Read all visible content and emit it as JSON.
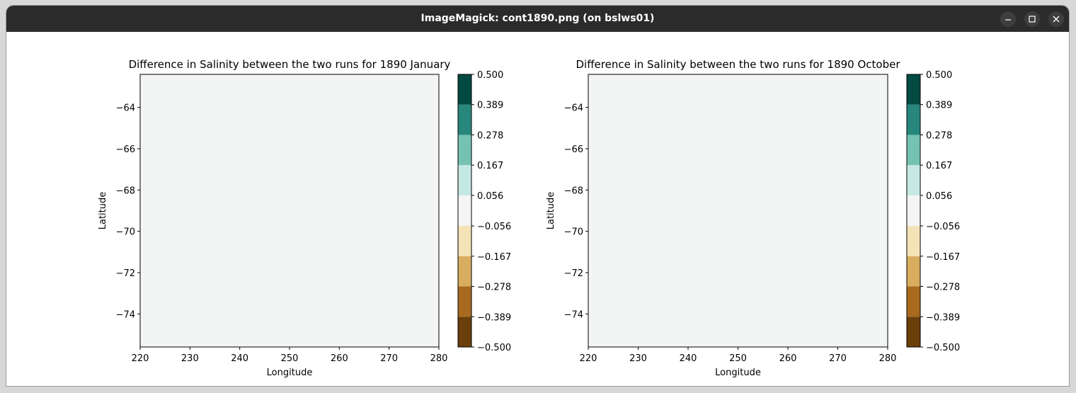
{
  "window": {
    "title": "ImageMagick: cont1890.png (on bslws01)",
    "buttons": [
      "minimize",
      "maximize",
      "close"
    ]
  },
  "colors": {
    "titlebar": "#2b2b2b",
    "field": "#f3f5f4",
    "colorbar": [
      "#6b3f0b",
      "#a86a1f",
      "#d8ad60",
      "#f5e3b8",
      "#f5f5f5",
      "#c6e8e2",
      "#75c2b2",
      "#27877c",
      "#034a42"
    ]
  },
  "chart_data": [
    {
      "type": "heatmap",
      "title": "Difference in Salinity between the two runs for 1890 January",
      "xlabel": "Longitude",
      "ylabel": "Latitude",
      "xlim": [
        220,
        280
      ],
      "ylim": [
        -75.6,
        -62.4
      ],
      "xticks": [
        220,
        230,
        240,
        250,
        260,
        270,
        280
      ],
      "yticks": [
        -64,
        -66,
        -68,
        -70,
        -72,
        -74
      ],
      "ytick_labels": [
        "−64",
        "−66",
        "−68",
        "−70",
        "−72",
        "−74"
      ],
      "field_value": 0.0,
      "colorbar": {
        "levels": [
          -0.5,
          -0.389,
          -0.278,
          -0.167,
          -0.056,
          0.056,
          0.167,
          0.278,
          0.389,
          0.5
        ],
        "labels": [
          "−0.500",
          "−0.389",
          "−0.278",
          "−0.167",
          "−0.056",
          "0.056",
          "0.167",
          "0.278",
          "0.389",
          "0.500"
        ],
        "colormap": "BrBG"
      }
    },
    {
      "type": "heatmap",
      "title": "Difference in Salinity between the two runs for 1890 October",
      "xlabel": "Longitude",
      "ylabel": "Latitude",
      "xlim": [
        220,
        280
      ],
      "ylim": [
        -75.6,
        -62.4
      ],
      "xticks": [
        220,
        230,
        240,
        250,
        260,
        270,
        280
      ],
      "yticks": [
        -64,
        -66,
        -68,
        -70,
        -72,
        -74
      ],
      "ytick_labels": [
        "−64",
        "−66",
        "−68",
        "−70",
        "−72",
        "−74"
      ],
      "field_value": 0.0,
      "colorbar": {
        "levels": [
          -0.5,
          -0.389,
          -0.278,
          -0.167,
          -0.056,
          0.056,
          0.167,
          0.278,
          0.389,
          0.5
        ],
        "labels": [
          "−0.500",
          "−0.389",
          "−0.278",
          "−0.167",
          "−0.056",
          "0.056",
          "0.167",
          "0.278",
          "0.389",
          "0.500"
        ],
        "colormap": "BrBG"
      }
    }
  ]
}
